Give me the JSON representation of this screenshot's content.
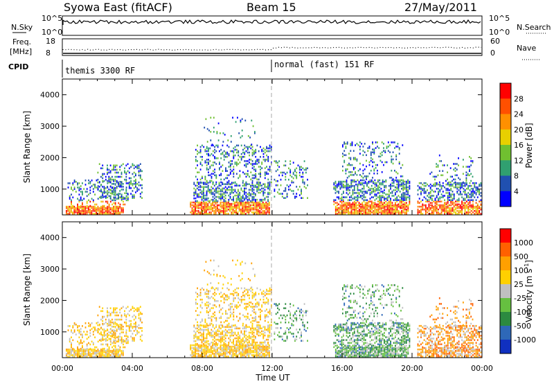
{
  "header": {
    "site": "Syowa East (fitACF)",
    "beam": "Beam 15",
    "date": "27/May/2011"
  },
  "scan_panel": {
    "left_label": "N.Sky",
    "left_ticks": [
      "10^5",
      "10^0"
    ],
    "right_label": "N.Search",
    "right_ticks": [
      "10^5",
      "10^0"
    ]
  },
  "freq_panel": {
    "label_line1": "Freq.",
    "label_line2": "[MHz]",
    "left_ticks": [
      "18",
      "8"
    ],
    "right_label": "Nave",
    "right_ticks": [
      "60",
      "0"
    ]
  },
  "cpid_panel": {
    "label": "CPID",
    "modes": [
      {
        "name": "themis 3300 RF",
        "start_hour": 0
      },
      {
        "name": "normal (fast) 151 RF",
        "start_hour": 12
      }
    ]
  },
  "chart_data": [
    {
      "type": "heatmap",
      "name": "power",
      "ylabel": "Slant Range [km]",
      "xlabel": "",
      "x_unit": "hours UT",
      "xlim": [
        0,
        24
      ],
      "ylim": [
        180,
        4500
      ],
      "y_ticks": [
        1000,
        2000,
        3000,
        4000
      ],
      "colorbar": {
        "label": "Power [dB]",
        "ticks": [
          "4",
          "8",
          "12",
          "16",
          "20",
          "24",
          "28"
        ],
        "colors": [
          "#0000ff",
          "#2050b0",
          "#30a070",
          "#70c030",
          "#e8d000",
          "#ff9000",
          "#ff5000",
          "#ff0000"
        ]
      }
    },
    {
      "type": "heatmap",
      "name": "velocity",
      "ylabel": "Slant Range [km]",
      "xlabel": "Time UT",
      "x_unit": "hours UT",
      "xlim": [
        0,
        24
      ],
      "ylim": [
        180,
        4500
      ],
      "y_ticks": [
        1000,
        2000,
        3000,
        4000
      ],
      "x_ticks": [
        "00:00",
        "04:00",
        "08:00",
        "12:00",
        "16:00",
        "20:00",
        "00:00"
      ],
      "colorbar": {
        "label": "Velocity [m s",
        "label_sup": "-1",
        "label_end": "]",
        "ticks": [
          "1000",
          "500",
          "100",
          "25",
          "-25",
          "-100",
          "-500",
          "-1000"
        ],
        "colors": [
          "#1030c0",
          "#2e68b8",
          "#2c8a40",
          "#66c040",
          "#c0c0c0",
          "#ffd000",
          "#ffa000",
          "#ff6000",
          "#ff0000"
        ]
      }
    }
  ]
}
